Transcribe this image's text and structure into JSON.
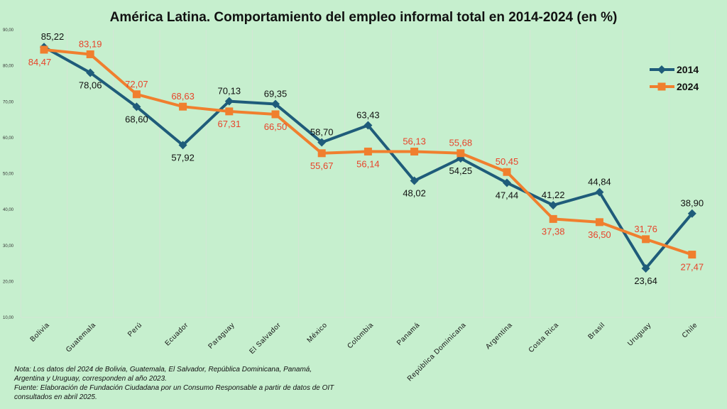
{
  "chart_data": {
    "type": "line",
    "title": "América Latina. Comportamiento del empleo informal total en 2014-2024 (en %)",
    "xlabel": "",
    "ylabel": "",
    "ylim": [
      10,
      90
    ],
    "yticks": [
      "90,00",
      "80,00",
      "70,00",
      "60,00",
      "50,00",
      "40,00",
      "30,00",
      "20,00",
      "10,00"
    ],
    "categories": [
      "Bolivia",
      "Guatemala",
      "Perú",
      "Ecuador",
      "Paraguay",
      "El Salvador",
      "México",
      "Colombia",
      "Panamá",
      "República Dominicana",
      "Argentina",
      "Costa Rica",
      "Brasil",
      "Uruguay",
      "Chile"
    ],
    "series": [
      {
        "name": "2014",
        "color": "#1f5c7a",
        "values": [
          85.22,
          78.06,
          68.6,
          57.92,
          70.13,
          69.35,
          58.7,
          63.43,
          48.02,
          54.25,
          47.44,
          41.22,
          44.84,
          23.64,
          38.9
        ],
        "labels": [
          "85,22",
          "78,06",
          "68,60",
          "57,92",
          "70,13",
          "69,35",
          "58,70",
          "63,43",
          "48,02",
          "54,25",
          "47,44",
          "41,22",
          "44,84",
          "23,64",
          "38,90"
        ]
      },
      {
        "name": "2024",
        "color": "#f07f2e",
        "values": [
          84.47,
          83.19,
          72.07,
          68.63,
          67.31,
          66.5,
          55.67,
          56.14,
          56.13,
          55.68,
          50.45,
          37.38,
          36.5,
          31.76,
          27.47
        ],
        "labels": [
          "84,47",
          "83,19",
          "72,07",
          "68,63",
          "67,31",
          "66,50",
          "55,67",
          "56,14",
          "56,13",
          "55,68",
          "50,45",
          "37,38",
          "36,50",
          "31,76",
          "27,47"
        ]
      }
    ],
    "grid": true,
    "legend_position": "top-right"
  },
  "notes": {
    "line1": "Nota: Los datos del 2024 de Bolivia, Guatemala, El Salvador, República Dominicana, Panamá,",
    "line2": "Argentina y Uruguay, corresponden al año 2023.",
    "line3": "Fuente: Elaboración de Fundación Ciudadana por un Consumo Responsable a partir de datos de OIT",
    "line4": "consultados en abril 2025."
  }
}
